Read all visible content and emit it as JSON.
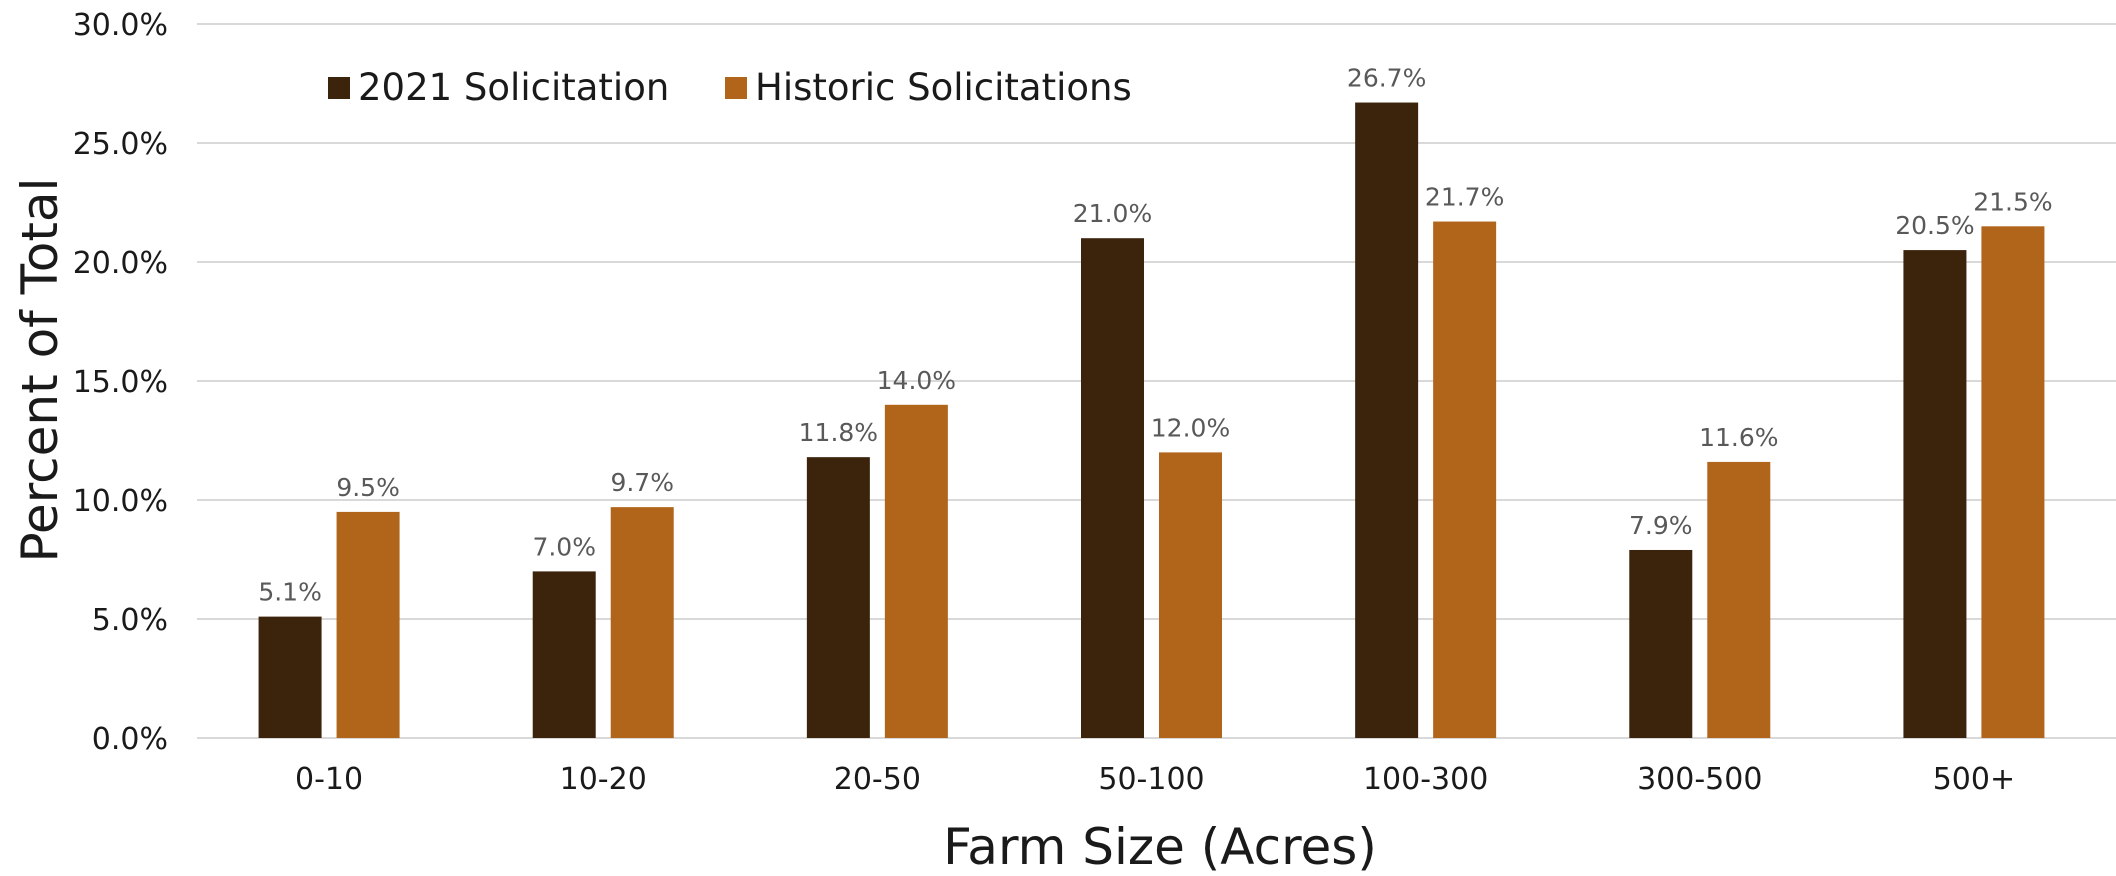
{
  "chart_data": {
    "type": "bar",
    "title": "",
    "xlabel": "Farm Size (Acres)",
    "ylabel": "Percent of Total",
    "categories": [
      "0-10",
      "10-20",
      "20-50",
      "50-100",
      "100-300",
      "300-500",
      "500+"
    ],
    "series": [
      {
        "name": "2021 Solicitation",
        "color": "#3b230c",
        "values": [
          5.1,
          7.0,
          11.8,
          21.0,
          26.7,
          7.9,
          20.5
        ],
        "labels": [
          "5.1%",
          "7.0%",
          "11.8%",
          "21.0%",
          "26.7%",
          "7.9%",
          "20.5%"
        ]
      },
      {
        "name": "Historic Solicitations",
        "color": "#b1651a",
        "values": [
          9.5,
          9.7,
          14.0,
          12.0,
          21.7,
          11.6,
          21.5
        ],
        "labels": [
          "9.5%",
          "9.7%",
          "14.0%",
          "12.0%",
          "21.7%",
          "11.6%",
          "21.5%"
        ]
      }
    ],
    "ylim": [
      0,
      30
    ],
    "yticks": [
      0,
      5,
      10,
      15,
      20,
      25,
      30
    ],
    "ytick_labels": [
      "0.0%",
      "5.0%",
      "10.0%",
      "15.0%",
      "20.0%",
      "25.0%",
      "30.0%"
    ],
    "grid": true,
    "legend_position": "top-left"
  }
}
